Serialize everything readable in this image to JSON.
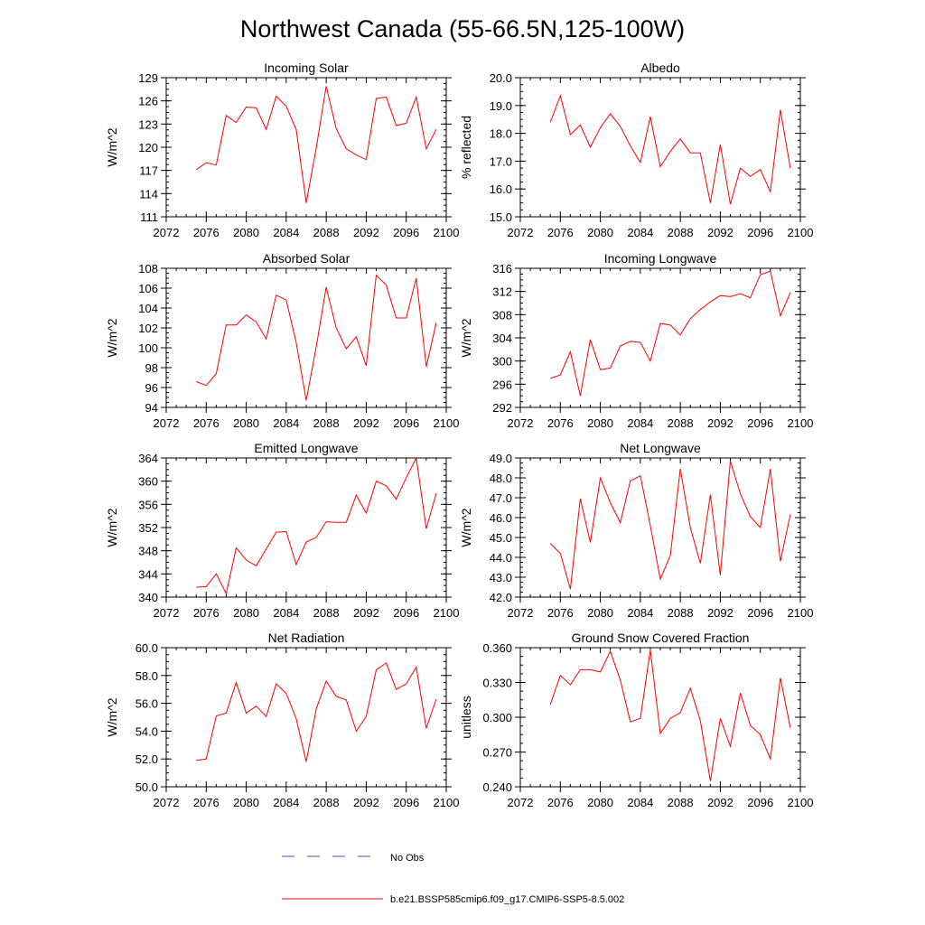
{
  "title": "Northwest Canada (55-66.5N,125-100W)",
  "colors": {
    "model_line": "#ff0000",
    "obs_line": "#4a4ad0",
    "axis": "#000000"
  },
  "legend": {
    "obs_label": "No Obs",
    "model_label": "b.e21.BSSP585cmip6.f09_g17.CMIP6-SSP5-8.5.002"
  },
  "chart_data": [
    {
      "type": "line",
      "title": "Incoming Solar",
      "ylabel": "W/m^2",
      "xlim": [
        2072,
        2100
      ],
      "xticks": [
        "2072",
        "2076",
        "2080",
        "2084",
        "2088",
        "2092",
        "2096",
        "2100"
      ],
      "ylim": [
        111,
        129
      ],
      "yticks": [
        "111",
        "114",
        "117",
        "120",
        "123",
        "126",
        "129"
      ],
      "series": [
        {
          "name": "b.e21.BSSP585cmip6.f09_g17.CMIP6-SSP5-8.5.002",
          "x": [
            2075,
            2076,
            2077,
            2078,
            2079,
            2080,
            2081,
            2082,
            2083,
            2084,
            2085,
            2086,
            2087,
            2088,
            2089,
            2090,
            2091,
            2092,
            2093,
            2094,
            2095,
            2096,
            2097,
            2098,
            2099
          ],
          "y": [
            117.1,
            118.0,
            117.7,
            124.1,
            123.2,
            125.2,
            125.1,
            122.3,
            126.6,
            125.3,
            122.3,
            112.8,
            119.9,
            127.9,
            122.4,
            119.8,
            119.0,
            118.4,
            126.3,
            126.5,
            122.8,
            123.1,
            126.5,
            119.8,
            122.3
          ]
        }
      ]
    },
    {
      "type": "line",
      "title": "Albedo",
      "ylabel": "% reflected",
      "xlim": [
        2072,
        2100
      ],
      "xticks": [
        "2072",
        "2076",
        "2080",
        "2084",
        "2088",
        "2092",
        "2096",
        "2100"
      ],
      "ylim": [
        15.0,
        20.0
      ],
      "yticks": [
        "15.0",
        "16.0",
        "17.0",
        "18.0",
        "19.0",
        "20.0"
      ],
      "series": [
        {
          "name": "b.e21.BSSP585cmip6.f09_g17.CMIP6-SSP5-8.5.002",
          "x": [
            2075,
            2076,
            2077,
            2078,
            2079,
            2080,
            2081,
            2082,
            2083,
            2084,
            2085,
            2086,
            2087,
            2088,
            2089,
            2090,
            2091,
            2092,
            2093,
            2094,
            2095,
            2096,
            2097,
            2098,
            2099
          ],
          "y": [
            18.4,
            19.35,
            17.95,
            18.3,
            17.5,
            18.2,
            18.7,
            18.25,
            17.55,
            16.95,
            18.6,
            16.8,
            17.35,
            17.8,
            17.3,
            17.3,
            15.5,
            17.6,
            15.45,
            16.75,
            16.45,
            16.7,
            15.9,
            18.85,
            16.75
          ]
        }
      ]
    },
    {
      "type": "line",
      "title": "Absorbed Solar",
      "ylabel": "W/m^2",
      "xlim": [
        2072,
        2100
      ],
      "xticks": [
        "2072",
        "2076",
        "2080",
        "2084",
        "2088",
        "2092",
        "2096",
        "2100"
      ],
      "ylim": [
        94,
        108
      ],
      "yticks": [
        "94",
        "96",
        "98",
        "100",
        "102",
        "104",
        "106",
        "108"
      ],
      "series": [
        {
          "name": "b.e21.BSSP585cmip6.f09_g17.CMIP6-SSP5-8.5.002",
          "x": [
            2075,
            2076,
            2077,
            2078,
            2079,
            2080,
            2081,
            2082,
            2083,
            2084,
            2085,
            2086,
            2087,
            2088,
            2089,
            2090,
            2091,
            2092,
            2093,
            2094,
            2095,
            2096,
            2097,
            2098,
            2099
          ],
          "y": [
            96.6,
            96.2,
            97.4,
            102.3,
            102.3,
            103.3,
            102.6,
            100.9,
            105.3,
            104.8,
            100.5,
            94.7,
            100.1,
            106.1,
            102.0,
            99.9,
            101.1,
            98.2,
            107.3,
            106.3,
            103.0,
            103.0,
            107.0,
            98.1,
            102.5
          ]
        }
      ]
    },
    {
      "type": "line",
      "title": "Incoming Longwave",
      "ylabel": "W/m^2",
      "xlim": [
        2072,
        2100
      ],
      "xticks": [
        "2072",
        "2076",
        "2080",
        "2084",
        "2088",
        "2092",
        "2096",
        "2100"
      ],
      "ylim": [
        292,
        316
      ],
      "yticks": [
        "292",
        "296",
        "300",
        "304",
        "308",
        "312",
        "316"
      ],
      "series": [
        {
          "name": "b.e21.BSSP585cmip6.f09_g17.CMIP6-SSP5-8.5.002",
          "x": [
            2075,
            2076,
            2077,
            2078,
            2079,
            2080,
            2081,
            2082,
            2083,
            2084,
            2085,
            2086,
            2087,
            2088,
            2089,
            2090,
            2091,
            2092,
            2093,
            2094,
            2095,
            2096,
            2097,
            2098,
            2099
          ],
          "y": [
            297.0,
            297.6,
            301.6,
            294.0,
            303.7,
            298.5,
            298.8,
            302.6,
            303.4,
            303.2,
            300.0,
            306.5,
            306.2,
            304.5,
            307.3,
            308.9,
            310.2,
            311.3,
            311.1,
            311.6,
            310.9,
            314.9,
            315.5,
            307.8,
            311.8
          ]
        }
      ]
    },
    {
      "type": "line",
      "title": "Emitted Longwave",
      "ylabel": "W/m^2",
      "xlim": [
        2072,
        2100
      ],
      "xticks": [
        "2072",
        "2076",
        "2080",
        "2084",
        "2088",
        "2092",
        "2096",
        "2100"
      ],
      "ylim": [
        340,
        364
      ],
      "yticks": [
        "340",
        "344",
        "348",
        "352",
        "356",
        "360",
        "364"
      ],
      "series": [
        {
          "name": "b.e21.BSSP585cmip6.f09_g17.CMIP6-SSP5-8.5.002",
          "x": [
            2075,
            2076,
            2077,
            2078,
            2079,
            2080,
            2081,
            2082,
            2083,
            2084,
            2085,
            2086,
            2087,
            2088,
            2089,
            2090,
            2091,
            2092,
            2093,
            2094,
            2095,
            2096,
            2097,
            2098,
            2099
          ],
          "y": [
            341.7,
            341.8,
            344.0,
            340.6,
            348.5,
            346.4,
            345.4,
            348.3,
            351.2,
            351.3,
            345.6,
            349.5,
            350.3,
            353.0,
            352.9,
            352.9,
            357.6,
            354.5,
            360.0,
            359.2,
            356.9,
            360.6,
            364.0,
            351.8,
            357.9
          ]
        }
      ]
    },
    {
      "type": "line",
      "title": "Net Longwave",
      "ylabel": "W/m^2",
      "xlim": [
        2072,
        2100
      ],
      "xticks": [
        "2072",
        "2076",
        "2080",
        "2084",
        "2088",
        "2092",
        "2096",
        "2100"
      ],
      "ylim": [
        42.0,
        49.0
      ],
      "yticks": [
        "42.0",
        "43.0",
        "44.0",
        "45.0",
        "46.0",
        "47.0",
        "48.0",
        "49.0"
      ],
      "series": [
        {
          "name": "b.e21.BSSP585cmip6.f09_g17.CMIP6-SSP5-8.5.002",
          "x": [
            2075,
            2076,
            2077,
            2078,
            2079,
            2080,
            2081,
            2082,
            2083,
            2084,
            2085,
            2086,
            2087,
            2088,
            2089,
            2090,
            2091,
            2092,
            2093,
            2094,
            2095,
            2096,
            2097,
            2098,
            2099
          ],
          "y": [
            44.7,
            44.2,
            42.4,
            46.95,
            44.75,
            48.0,
            46.75,
            45.75,
            47.85,
            48.1,
            45.6,
            42.9,
            44.1,
            48.45,
            45.5,
            43.7,
            47.15,
            43.1,
            48.85,
            47.2,
            46.05,
            45.5,
            48.45,
            43.8,
            46.15
          ]
        }
      ]
    },
    {
      "type": "line",
      "title": "Net Radiation",
      "ylabel": "W/m^2",
      "xlim": [
        2072,
        2100
      ],
      "xticks": [
        "2072",
        "2076",
        "2080",
        "2084",
        "2088",
        "2092",
        "2096",
        "2100"
      ],
      "ylim": [
        50.0,
        60.0
      ],
      "yticks": [
        "50.0",
        "52.0",
        "54.0",
        "56.0",
        "58.0",
        "60.0"
      ],
      "series": [
        {
          "name": "b.e21.BSSP585cmip6.f09_g17.CMIP6-SSP5-8.5.002",
          "x": [
            2075,
            2076,
            2077,
            2078,
            2079,
            2080,
            2081,
            2082,
            2083,
            2084,
            2085,
            2086,
            2087,
            2088,
            2089,
            2090,
            2091,
            2092,
            2093,
            2094,
            2095,
            2096,
            2097,
            2098,
            2099
          ],
          "y": [
            51.9,
            52.0,
            55.1,
            55.3,
            57.5,
            55.3,
            55.8,
            55.05,
            57.4,
            56.7,
            54.9,
            51.8,
            55.6,
            57.6,
            56.5,
            56.25,
            54.0,
            55.05,
            58.4,
            58.9,
            57.0,
            57.4,
            58.6,
            54.2,
            56.3
          ]
        }
      ]
    },
    {
      "type": "line",
      "title": "Ground Snow Covered Fraction",
      "ylabel": "unitless",
      "xlim": [
        2072,
        2100
      ],
      "xticks": [
        "2072",
        "2076",
        "2080",
        "2084",
        "2088",
        "2092",
        "2096",
        "2100"
      ],
      "ylim": [
        0.24,
        0.36
      ],
      "yticks": [
        "0.240",
        "0.270",
        "0.300",
        "0.330",
        "0.360"
      ],
      "series": [
        {
          "name": "b.e21.BSSP585cmip6.f09_g17.CMIP6-SSP5-8.5.002",
          "x": [
            2075,
            2076,
            2077,
            2078,
            2079,
            2080,
            2081,
            2082,
            2083,
            2084,
            2085,
            2086,
            2087,
            2088,
            2089,
            2090,
            2091,
            2092,
            2093,
            2094,
            2095,
            2096,
            2097,
            2098,
            2099
          ],
          "y": [
            0.311,
            0.336,
            0.328,
            0.341,
            0.341,
            0.339,
            0.357,
            0.332,
            0.296,
            0.299,
            0.358,
            0.286,
            0.299,
            0.304,
            0.325,
            0.297,
            0.245,
            0.299,
            0.275,
            0.321,
            0.293,
            0.285,
            0.264,
            0.334,
            0.291
          ]
        }
      ]
    }
  ]
}
